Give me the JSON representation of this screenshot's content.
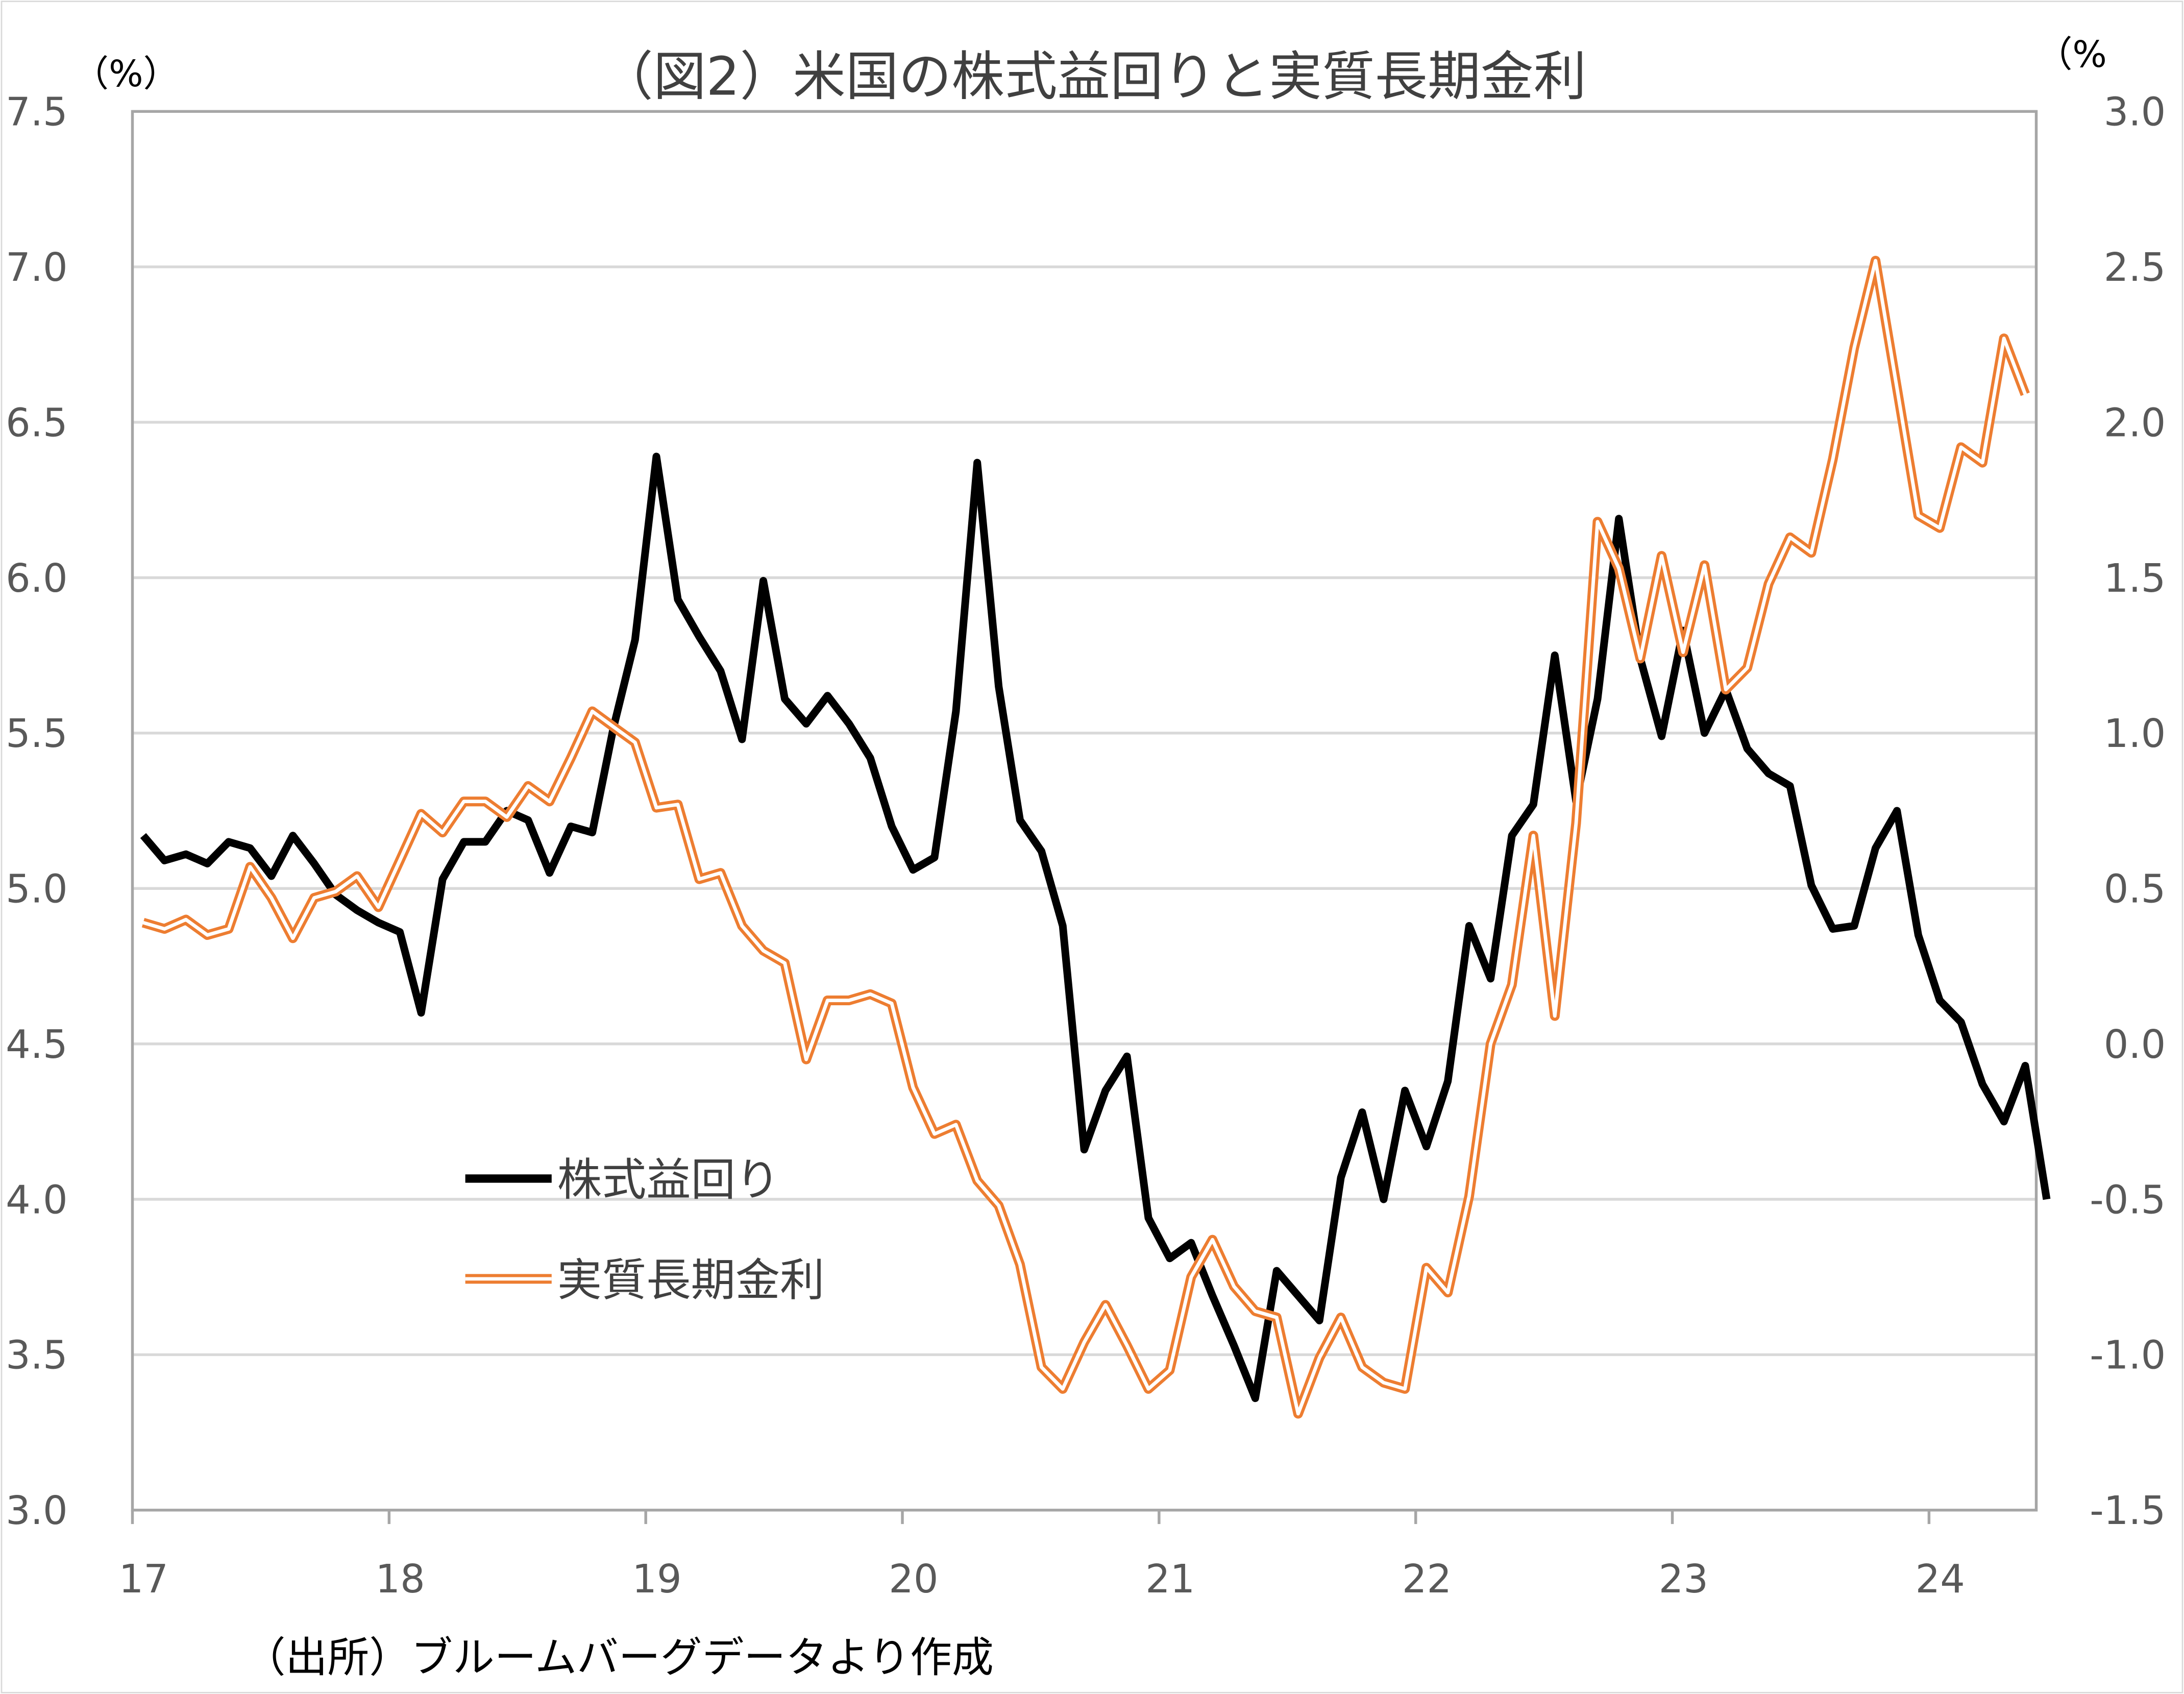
{
  "chart_data": {
    "type": "line",
    "title": "（図2）米国の株式益回りと実質長期金利",
    "left_unit": "（%）",
    "right_unit": "（%",
    "source": "（出所）ブルームバーグデータより作成",
    "x_tick_labels": [
      "17",
      "18",
      "19",
      "20",
      "21",
      "22",
      "23",
      "24"
    ],
    "x_start": "2017-01",
    "x_frequency": "monthly",
    "y_left": {
      "range": [
        3.0,
        7.5
      ],
      "ticks": [
        "3.0",
        "3.5",
        "4.0",
        "4.5",
        "5.0",
        "5.5",
        "6.0",
        "6.5",
        "7.0",
        "7.5"
      ]
    },
    "y_right": {
      "range": [
        -1.5,
        3.0
      ],
      "ticks": [
        "-1.5",
        "-1.0",
        "-0.5",
        "0.0",
        "0.5",
        "1.0",
        "1.5",
        "2.0",
        "2.5",
        "3.0"
      ]
    },
    "grid": true,
    "legend_placement": "center-left",
    "series": [
      {
        "name": "株式益回り",
        "axis": "left",
        "color": "#000000",
        "style": "solid",
        "values": [
          5.17,
          5.09,
          5.11,
          5.08,
          5.15,
          5.13,
          5.04,
          5.17,
          5.08,
          4.98,
          4.93,
          4.89,
          4.86,
          4.6,
          5.03,
          5.15,
          5.15,
          5.25,
          5.22,
          5.05,
          5.2,
          5.18,
          5.52,
          5.8,
          6.39,
          5.93,
          5.81,
          5.7,
          5.48,
          5.99,
          5.61,
          5.53,
          5.62,
          5.53,
          5.42,
          5.2,
          5.06,
          5.1,
          5.57,
          6.37,
          5.65,
          5.22,
          5.12,
          4.88,
          4.16,
          4.35,
          4.46,
          3.94,
          3.81,
          3.86,
          3.69,
          3.53,
          3.36,
          3.77,
          3.69,
          3.61,
          4.07,
          4.28,
          4.0,
          4.35,
          4.17,
          4.38,
          4.88,
          4.71,
          5.17,
          5.27,
          5.75,
          5.28,
          5.61,
          6.19,
          5.74,
          5.49,
          5.83,
          5.5,
          5.64,
          5.45,
          5.37,
          5.33,
          5.01,
          4.87,
          4.88,
          5.13,
          5.25,
          4.85,
          4.64,
          4.57,
          4.37,
          4.25,
          4.43,
          4.0
        ]
      },
      {
        "name": "実質長期金利",
        "axis": "right",
        "color": "#ED7D31",
        "style": "double",
        "values": [
          0.39,
          0.37,
          0.4,
          0.35,
          0.37,
          0.57,
          0.47,
          0.34,
          0.47,
          0.49,
          0.54,
          0.44,
          0.59,
          0.74,
          0.68,
          0.78,
          0.78,
          0.73,
          0.83,
          0.78,
          0.92,
          1.07,
          1.02,
          0.97,
          0.76,
          0.77,
          0.53,
          0.55,
          0.38,
          0.3,
          0.26,
          -0.05,
          0.14,
          0.14,
          0.16,
          0.13,
          -0.14,
          -0.29,
          -0.26,
          -0.44,
          -0.52,
          -0.71,
          -1.04,
          -1.11,
          -0.96,
          -0.84,
          -0.97,
          -1.11,
          -1.05,
          -0.75,
          -0.63,
          -0.78,
          -0.86,
          -0.88,
          -1.19,
          -1.01,
          -0.88,
          -1.04,
          -1.09,
          -1.11,
          -0.72,
          -0.8,
          -0.49,
          0.0,
          0.19,
          0.67,
          0.09,
          0.71,
          1.68,
          1.53,
          1.24,
          1.57,
          1.26,
          1.54,
          1.14,
          1.21,
          1.48,
          1.63,
          1.58,
          1.88,
          2.24,
          2.52,
          2.11,
          1.7,
          1.66,
          1.92,
          1.87,
          2.27,
          2.09
        ]
      }
    ]
  }
}
